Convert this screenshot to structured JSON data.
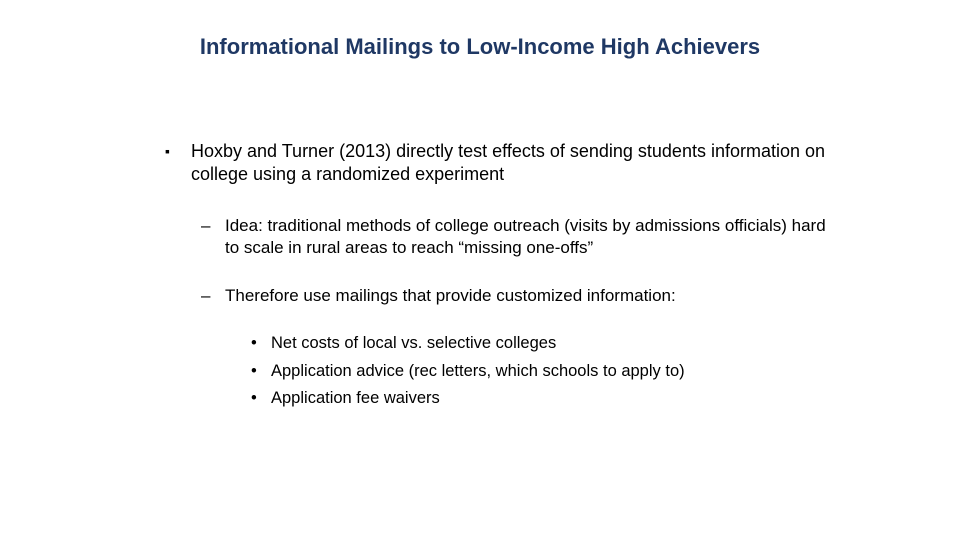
{
  "title": "Informational Mailings to Low-Income High Achievers",
  "colors": {
    "title": "#1f3864",
    "body_text": "#000000",
    "background": "#ffffff"
  },
  "bullets": {
    "l1_marker": "▪",
    "l2_marker": "–",
    "l3_marker": "•",
    "main": "Hoxby and Turner (2013) directly test effects of sending students information on college using a randomized experiment",
    "sub1": "Idea: traditional methods of college outreach (visits by admissions officials) hard to scale in rural areas to reach “missing one-offs”",
    "sub2": "Therefore use mailings that provide customized information:",
    "details": {
      "d1": "Net costs of local vs. selective colleges",
      "d2": "Application advice (rec letters, which schools to apply to)",
      "d3": "Application fee waivers"
    }
  },
  "fonts": {
    "title_size": 22,
    "body_size": 18,
    "sub_size": 17,
    "detail_size": 16.5
  }
}
